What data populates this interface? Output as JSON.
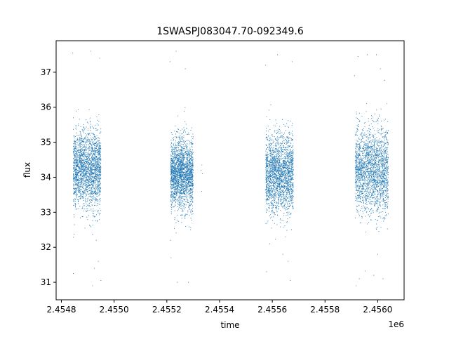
{
  "chart_data": {
    "type": "scatter",
    "title": "1SWASPJ083047.70-092349.6",
    "xlabel": "time",
    "ylabel": "flux",
    "x_offset_label": "1e6",
    "xlim": [
      2454780,
      2456100
    ],
    "ylim": [
      30.5,
      37.9
    ],
    "x_ticks": [
      2454800,
      2455000,
      2455200,
      2455400,
      2455600,
      2455800,
      2456000
    ],
    "x_tick_labels": [
      "2.4548",
      "2.4550",
      "2.4552",
      "2.4554",
      "2.4556",
      "2.4558",
      "2.4560"
    ],
    "y_ticks": [
      31,
      32,
      33,
      34,
      35,
      36,
      37
    ],
    "y_tick_labels": [
      "31",
      "32",
      "33",
      "34",
      "35",
      "36",
      "37"
    ],
    "grid": false,
    "marker_color": "#1f77b4",
    "observing_seasons": [
      {
        "start": 2454845,
        "end": 2454950,
        "center_flux": 34.2,
        "spread": 0.55
      },
      {
        "start": 2455215,
        "end": 2455300,
        "center_flux": 34.1,
        "spread": 0.5
      },
      {
        "start": 2455575,
        "end": 2455680,
        "center_flux": 34.1,
        "spread": 0.55
      },
      {
        "start": 2455915,
        "end": 2456040,
        "center_flux": 34.2,
        "spread": 0.6
      }
    ],
    "outlier_points": [
      {
        "x": 2454843,
        "y": 37.55
      },
      {
        "x": 2454845,
        "y": 31.25
      },
      {
        "x": 2454912,
        "y": 37.6
      },
      {
        "x": 2454918,
        "y": 30.9
      },
      {
        "x": 2454925,
        "y": 31.4
      },
      {
        "x": 2454932,
        "y": 32.2
      },
      {
        "x": 2454945,
        "y": 37.4
      },
      {
        "x": 2454950,
        "y": 31.05
      },
      {
        "x": 2454940,
        "y": 31.6
      },
      {
        "x": 2455212,
        "y": 37.3
      },
      {
        "x": 2455214,
        "y": 32.2
      },
      {
        "x": 2455216,
        "y": 31.7
      },
      {
        "x": 2455235,
        "y": 37.6
      },
      {
        "x": 2455240,
        "y": 31.0
      },
      {
        "x": 2455270,
        "y": 37.1
      },
      {
        "x": 2455282,
        "y": 31.0
      },
      {
        "x": 2455290,
        "y": 32.5
      },
      {
        "x": 2455330,
        "y": 34.2
      },
      {
        "x": 2455333,
        "y": 34.35
      },
      {
        "x": 2455335,
        "y": 34.1
      },
      {
        "x": 2455332,
        "y": 33.6
      },
      {
        "x": 2455575,
        "y": 37.2
      },
      {
        "x": 2455578,
        "y": 31.3
      },
      {
        "x": 2455590,
        "y": 32.1
      },
      {
        "x": 2455620,
        "y": 37.5
      },
      {
        "x": 2455640,
        "y": 31.8
      },
      {
        "x": 2455650,
        "y": 32.3
      },
      {
        "x": 2455660,
        "y": 31.6
      },
      {
        "x": 2455668,
        "y": 31.05
      },
      {
        "x": 2455675,
        "y": 37.3
      },
      {
        "x": 2455912,
        "y": 36.9
      },
      {
        "x": 2455918,
        "y": 30.9
      },
      {
        "x": 2455925,
        "y": 37.45
      },
      {
        "x": 2455930,
        "y": 31.1
      },
      {
        "x": 2455960,
        "y": 37.5
      },
      {
        "x": 2455985,
        "y": 31.2
      },
      {
        "x": 2455995,
        "y": 37.5
      },
      {
        "x": 2456000,
        "y": 31.8
      },
      {
        "x": 2456010,
        "y": 37.1
      },
      {
        "x": 2456020,
        "y": 31.1
      },
      {
        "x": 2456030,
        "y": 33.0
      },
      {
        "x": 2456035,
        "y": 36.1
      }
    ]
  }
}
